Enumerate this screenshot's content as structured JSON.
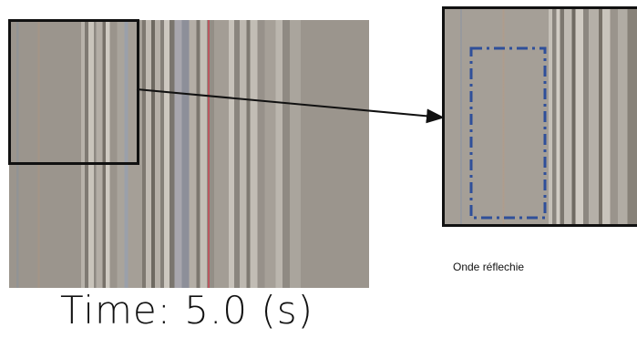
{
  "caption": "Time: 5.0 (s)",
  "annotation": "Onde réflechie"
}
